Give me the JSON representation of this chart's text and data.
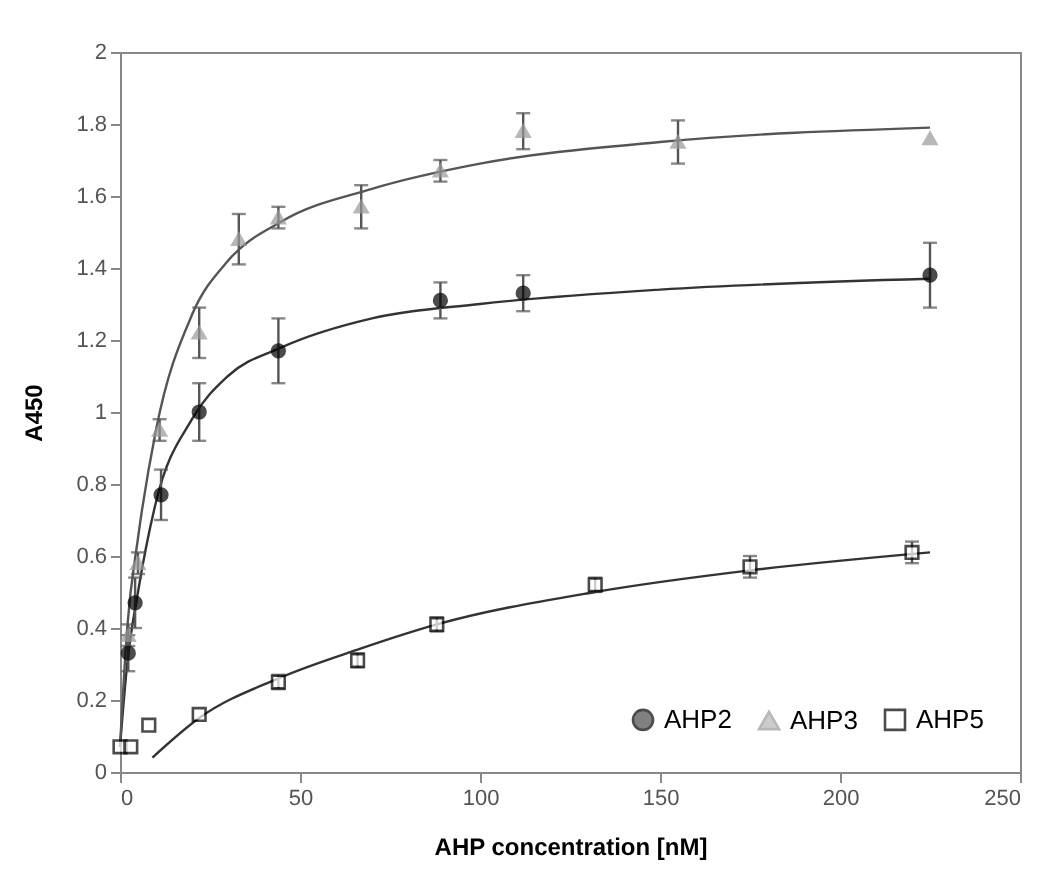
{
  "chart_data": {
    "type": "scatter",
    "xlabel": "AHP concentration [nM]",
    "ylabel": "A450",
    "xlim": [
      0,
      250
    ],
    "xticks": [
      0,
      50,
      100,
      150,
      200,
      250
    ],
    "ylim": [
      0,
      2
    ],
    "yticks": [
      0,
      0.2,
      0.4,
      0.6,
      0.8,
      1,
      1.2,
      1.4,
      1.6,
      1.8,
      2
    ],
    "grid": false,
    "legend": "bottom right",
    "series": [
      {
        "name": "AHP2",
        "color": "#000000",
        "marker": "circle",
        "x": [
          2.3,
          4.2,
          11.4,
          22,
          44,
          89,
          112,
          225
        ],
        "values": [
          0.33,
          0.47,
          0.77,
          1.0,
          1.17,
          1.31,
          1.33,
          1.38
        ],
        "errors": [
          0.05,
          0.07,
          0.07,
          0.08,
          0.09,
          0.05,
          0.05,
          0.09
        ]
      },
      {
        "name": "AHP3",
        "color": "#999999",
        "marker": "triangle",
        "x": [
          2.3,
          5,
          11,
          22,
          33,
          44,
          67,
          89,
          112,
          155,
          225
        ],
        "values": [
          0.38,
          0.58,
          0.95,
          1.22,
          1.48,
          1.54,
          1.57,
          1.67,
          1.78,
          1.75,
          1.76
        ],
        "errors": [
          0.03,
          0.03,
          0.03,
          0.07,
          0.07,
          0.03,
          0.06,
          0.03,
          0.05,
          0.06,
          null
        ]
      },
      {
        "name": "AHP5",
        "color": "#000000",
        "marker": "square",
        "x": [
          0,
          3,
          8,
          22,
          44,
          66,
          88,
          132,
          175,
          220
        ],
        "values": [
          0.07,
          0.07,
          0.13,
          0.16,
          0.25,
          0.31,
          0.41,
          0.52,
          0.57,
          0.61
        ],
        "errors": [
          null,
          null,
          null,
          null,
          0.02,
          0.02,
          0.02,
          0.02,
          0.03,
          0.03
        ]
      },
      {
        "type": "line",
        "color": "#333333",
        "marker": "none",
        "x": [
          0,
          2,
          5,
          10,
          20,
          30,
          45,
          70,
          100,
          150,
          225
        ],
        "values": [
          0.07,
          0.3,
          0.5,
          0.75,
          0.98,
          1.1,
          1.18,
          1.26,
          1.3,
          1.34,
          1.37
        ]
      },
      {
        "type": "line",
        "color": "#555555",
        "marker": "none",
        "x": [
          0,
          2,
          5,
          10,
          20,
          30,
          45,
          70,
          100,
          150,
          225
        ],
        "values": [
          0.07,
          0.4,
          0.65,
          0.95,
          1.27,
          1.42,
          1.53,
          1.62,
          1.69,
          1.75,
          1.79
        ]
      },
      {
        "type": "line",
        "color": "#333333",
        "marker": "none",
        "x": [
          9,
          22,
          44,
          66,
          88,
          132,
          175,
          225
        ],
        "values": [
          0.04,
          0.15,
          0.26,
          0.34,
          0.41,
          0.5,
          0.56,
          0.61
        ]
      }
    ]
  }
}
